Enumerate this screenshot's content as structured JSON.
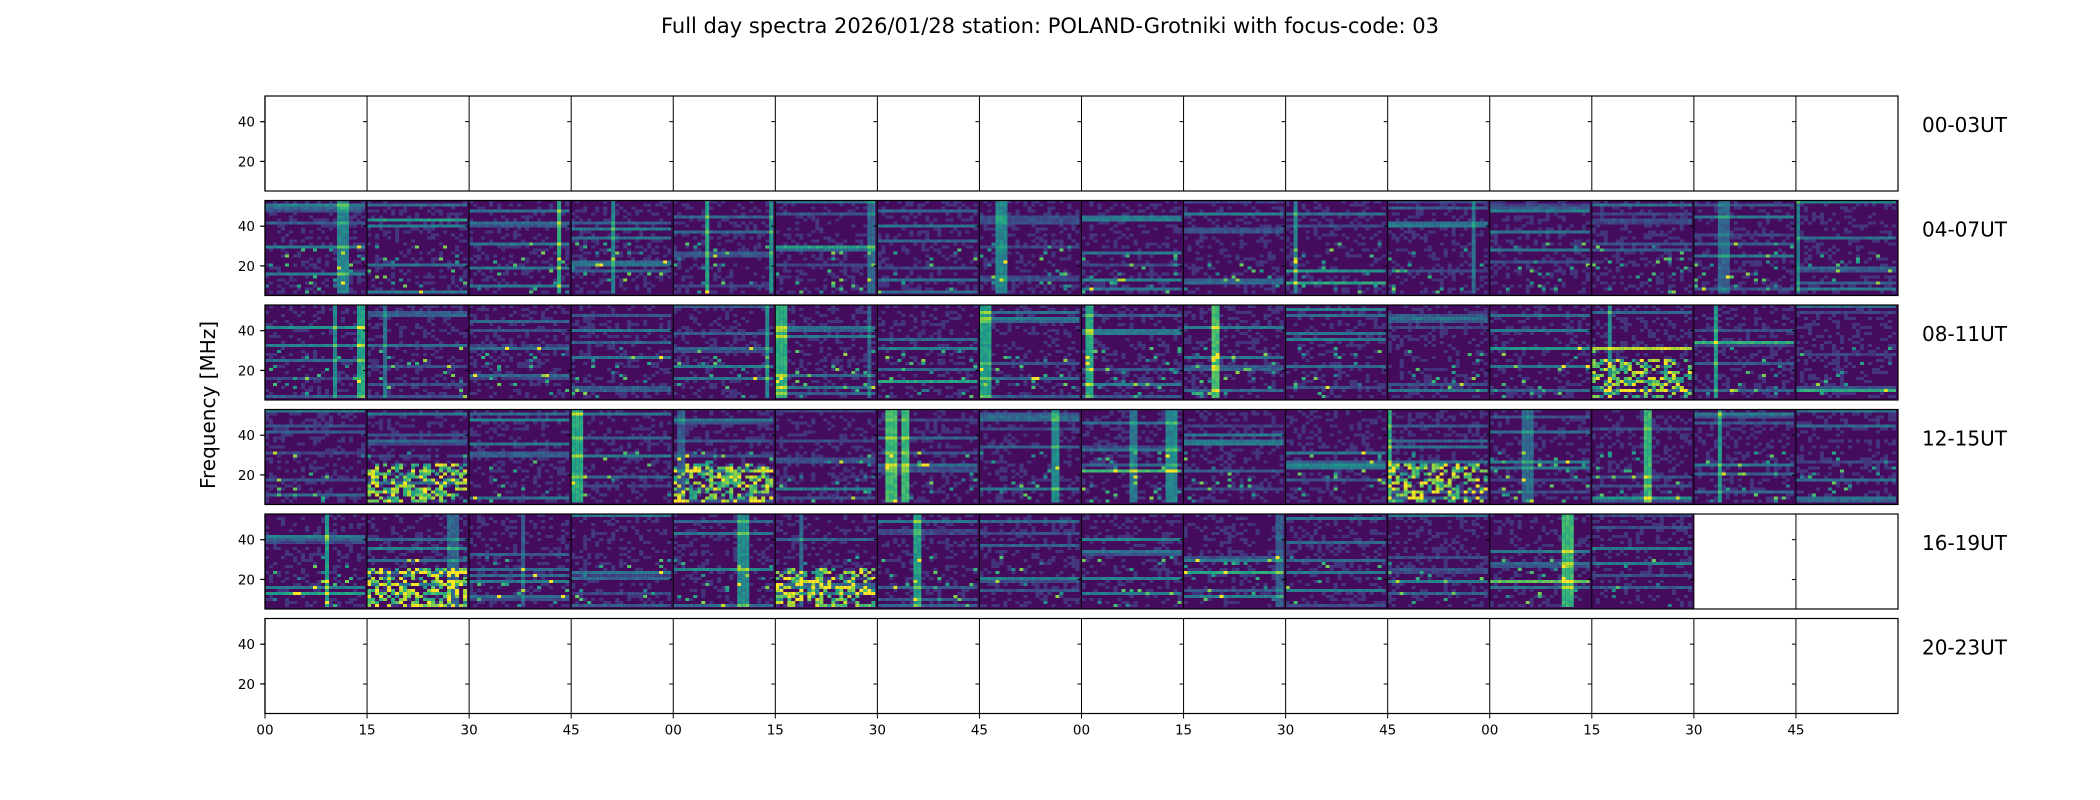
{
  "chart_data": {
    "type": "heatmap",
    "title": "Full day spectra 2026/01/28 station: POLAND-Grotniki with focus-code: 03",
    "ylabel": "Frequency [MHz]",
    "xlabel": "",
    "y_ticks": [
      "40",
      "20"
    ],
    "ylim": [
      5,
      53
    ],
    "x_ticks": [
      "00",
      "15",
      "30",
      "45",
      "00",
      "15",
      "30",
      "45",
      "00",
      "15",
      "30",
      "45",
      "00",
      "15",
      "30",
      "45"
    ],
    "colormap": "viridis",
    "colors": {
      "low": "#440154",
      "mid": "#21918c",
      "high": "#fde725"
    },
    "rows": [
      {
        "label": "00-03UT",
        "panels_with_data": 0
      },
      {
        "label": "04-07UT",
        "panels_with_data": 16
      },
      {
        "label": "08-11UT",
        "panels_with_data": 16
      },
      {
        "label": "12-15UT",
        "panels_with_data": 16
      },
      {
        "label": "16-19UT",
        "panels_with_data": 14
      },
      {
        "label": "20-23UT",
        "panels_with_data": 0
      }
    ],
    "panels_per_row": 16,
    "minutes_per_panel": 15
  }
}
